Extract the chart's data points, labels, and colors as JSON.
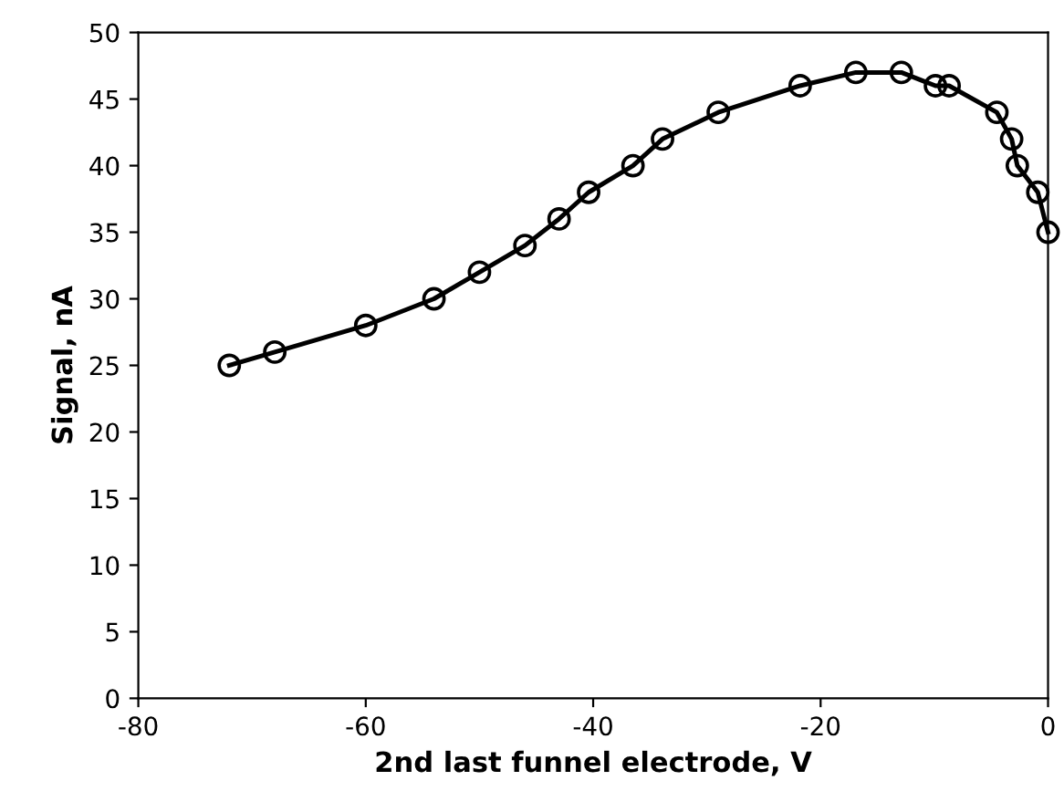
{
  "chart_data": {
    "type": "line",
    "xlabel": "2nd last funnel electrode, V",
    "ylabel": "Signal, nA",
    "x": [
      -72,
      -68,
      -60,
      -54,
      -50,
      -46,
      -43,
      -40.4,
      -36.5,
      -33.9,
      -29,
      -21.8,
      -16.9,
      -12.9,
      -9.9,
      -8.7,
      -4.5,
      -3.2,
      -2.7,
      -0.9,
      0
    ],
    "series": [
      {
        "color": "#000000",
        "values": [
          25,
          26,
          28,
          30,
          32,
          34,
          36,
          38,
          40,
          42,
          44,
          46,
          47,
          47,
          46,
          46,
          44,
          42,
          40,
          38,
          35
        ]
      }
    ],
    "marker": "circle",
    "line_style": "solid",
    "grid": false,
    "legend": false,
    "xlim": [
      -80,
      0
    ],
    "xticks": [
      -80,
      -60,
      -40,
      -20,
      0
    ],
    "ylim": [
      0,
      50
    ],
    "yticks": [
      0,
      5,
      10,
      15,
      20,
      25,
      30,
      35,
      40,
      45,
      50
    ]
  }
}
